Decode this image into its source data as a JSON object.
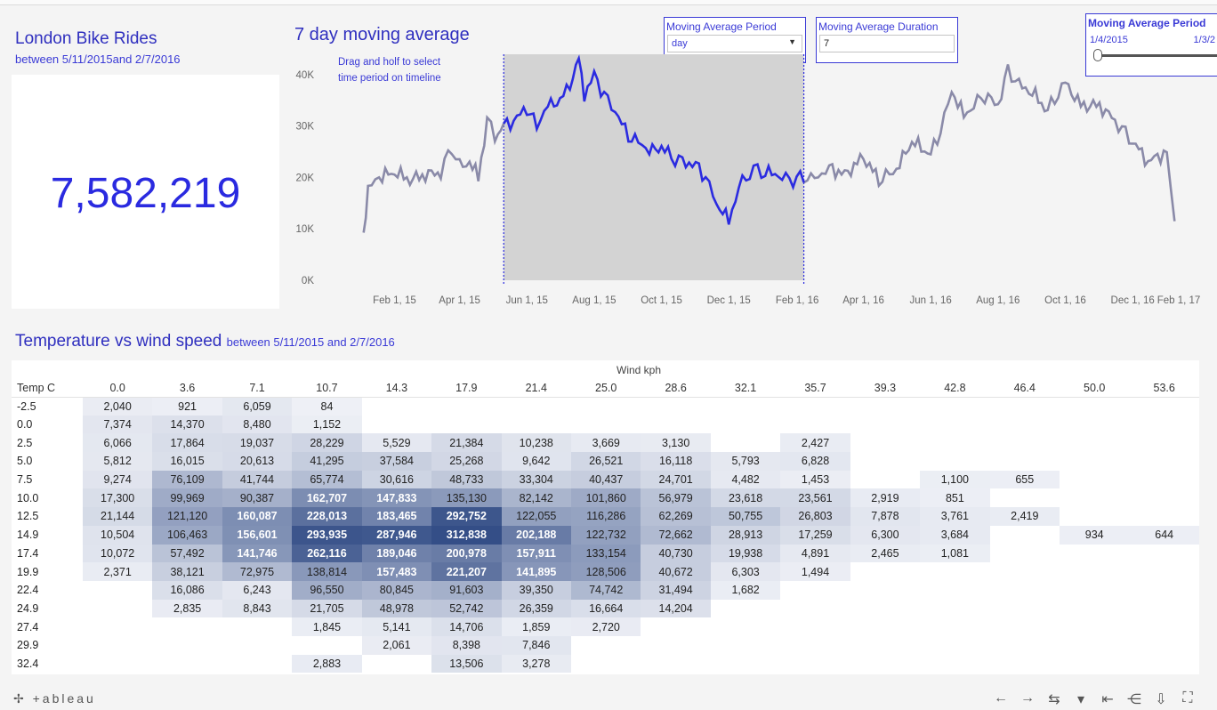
{
  "dashboard": {
    "title": "London Bike Rides",
    "subtitle": "between 5/11/2015and 2/7/2016",
    "kpi_value": "7,582,219"
  },
  "line_chart": {
    "title": "7 day moving average",
    "hint_line1": "Drag and holf to select",
    "hint_line2": "time period on timeline"
  },
  "controls": {
    "period": {
      "label": "Moving Average Period",
      "value": "day"
    },
    "duration": {
      "label": "Moving Average Duration",
      "value": "7"
    },
    "period_range": {
      "label": "Moving Average Period",
      "start": "1/4/2015",
      "end": "1/3/2"
    }
  },
  "heatmap": {
    "title": "Temperature vs wind speed",
    "subtitle": "between 5/11/2015 and 2/7/2016",
    "col_title": "Wind kph",
    "row_title": "Temp C",
    "columns": [
      "0.0",
      "3.6",
      "7.1",
      "10.7",
      "14.3",
      "17.9",
      "21.4",
      "25.0",
      "28.6",
      "32.1",
      "35.7",
      "39.3",
      "42.8",
      "46.4",
      "50.0",
      "53.6"
    ],
    "rows": [
      {
        "temp": "-2.5",
        "cells": [
          "2,040",
          "921",
          "6,059",
          "84",
          "",
          "",
          "",
          "",
          "",
          "",
          "",
          "",
          "",
          "",
          "",
          ""
        ]
      },
      {
        "temp": "0.0",
        "cells": [
          "7,374",
          "14,370",
          "8,480",
          "1,152",
          "",
          "",
          "",
          "",
          "",
          "",
          "",
          "",
          "",
          "",
          "",
          ""
        ]
      },
      {
        "temp": "2.5",
        "cells": [
          "6,066",
          "17,864",
          "19,037",
          "28,229",
          "5,529",
          "21,384",
          "10,238",
          "3,669",
          "3,130",
          "",
          "2,427",
          "",
          "",
          "",
          "",
          ""
        ]
      },
      {
        "temp": "5.0",
        "cells": [
          "5,812",
          "16,015",
          "20,613",
          "41,295",
          "37,584",
          "25,268",
          "9,642",
          "26,521",
          "16,118",
          "5,793",
          "6,828",
          "",
          "",
          "",
          "",
          ""
        ]
      },
      {
        "temp": "7.5",
        "cells": [
          "9,274",
          "76,109",
          "41,744",
          "65,774",
          "30,616",
          "48,733",
          "33,304",
          "40,437",
          "24,701",
          "4,482",
          "1,453",
          "",
          "1,100",
          "655",
          "",
          ""
        ]
      },
      {
        "temp": "10.0",
        "cells": [
          "17,300",
          "99,969",
          "90,387",
          "162,707",
          "147,833",
          "135,130",
          "82,142",
          "101,860",
          "56,979",
          "23,618",
          "23,561",
          "2,919",
          "851",
          "",
          "",
          ""
        ]
      },
      {
        "temp": "12.5",
        "cells": [
          "21,144",
          "121,120",
          "160,087",
          "228,013",
          "183,465",
          "292,752",
          "122,055",
          "116,286",
          "62,269",
          "50,755",
          "26,803",
          "7,878",
          "3,761",
          "2,419",
          "",
          ""
        ]
      },
      {
        "temp": "14.9",
        "cells": [
          "10,504",
          "106,463",
          "156,601",
          "293,935",
          "287,946",
          "312,838",
          "202,188",
          "122,732",
          "72,662",
          "28,913",
          "17,259",
          "6,300",
          "3,684",
          "",
          "934",
          "644"
        ]
      },
      {
        "temp": "17.4",
        "cells": [
          "10,072",
          "57,492",
          "141,746",
          "262,116",
          "189,046",
          "200,978",
          "157,911",
          "133,154",
          "40,730",
          "19,938",
          "4,891",
          "2,465",
          "1,081",
          "",
          "",
          ""
        ]
      },
      {
        "temp": "19.9",
        "cells": [
          "2,371",
          "38,121",
          "72,975",
          "138,814",
          "157,483",
          "221,207",
          "141,895",
          "128,506",
          "40,672",
          "6,303",
          "1,494",
          "",
          "",
          "",
          "",
          ""
        ]
      },
      {
        "temp": "22.4",
        "cells": [
          "",
          "16,086",
          "6,243",
          "96,550",
          "80,845",
          "91,603",
          "39,350",
          "74,742",
          "31,494",
          "1,682",
          "",
          "",
          "",
          "",
          "",
          ""
        ]
      },
      {
        "temp": "24.9",
        "cells": [
          "",
          "2,835",
          "8,843",
          "21,705",
          "48,978",
          "52,742",
          "26,359",
          "16,664",
          "14,204",
          "",
          "",
          "",
          "",
          "",
          "",
          ""
        ]
      },
      {
        "temp": "27.4",
        "cells": [
          "",
          "",
          "",
          "1,845",
          "5,141",
          "14,706",
          "1,859",
          "2,720",
          "",
          "",
          "",
          "",
          "",
          "",
          "",
          ""
        ]
      },
      {
        "temp": "29.9",
        "cells": [
          "",
          "",
          "",
          "",
          "2,061",
          "8,398",
          "7,846",
          "",
          "",
          "",
          "",
          "",
          "",
          "",
          "",
          ""
        ]
      },
      {
        "temp": "32.4",
        "cells": [
          "",
          "",
          "",
          "2,883",
          "",
          "13,506",
          "3,278",
          "",
          "",
          "",
          "",
          "",
          "",
          "",
          "",
          ""
        ]
      }
    ]
  },
  "footer": {
    "logo": "+ableau"
  },
  "chart_data": [
    {
      "type": "line",
      "title": "7 day moving average",
      "ylabel": "",
      "xlabel": "",
      "ylim": [
        0,
        45000
      ],
      "yticks": [
        "0K",
        "10K",
        "20K",
        "30K",
        "40K"
      ],
      "xticks": [
        "Feb 1, 15",
        "Apr 1, 15",
        "Jun 1, 15",
        "Aug 1, 15",
        "Oct 1, 15",
        "Dec 1, 15",
        "Feb 1, 16",
        "Apr 1, 16",
        "Jun 1, 16",
        "Aug 1, 16",
        "Oct 1, 16",
        "Dec 1, 16",
        "Feb 1, 17"
      ],
      "selection": {
        "start": "2015-05-11",
        "end": "2016-02-07",
        "highlight_color": "#2b2be0",
        "base_color": "#8a8aa8"
      },
      "x": [
        "2015-01-04",
        "2015-01-08",
        "2015-01-18",
        "2015-02-01",
        "2015-02-15",
        "2015-03-01",
        "2015-03-15",
        "2015-03-25",
        "2015-04-01",
        "2015-04-10",
        "2015-04-18",
        "2015-04-26",
        "2015-05-03",
        "2015-05-11",
        "2015-05-20",
        "2015-06-01",
        "2015-06-10",
        "2015-06-20",
        "2015-07-01",
        "2015-07-10",
        "2015-07-18",
        "2015-07-23",
        "2015-08-01",
        "2015-08-10",
        "2015-08-20",
        "2015-09-01",
        "2015-09-10",
        "2015-09-20",
        "2015-10-01",
        "2015-10-10",
        "2015-10-20",
        "2015-11-01",
        "2015-11-10",
        "2015-11-20",
        "2015-12-01",
        "2015-12-10",
        "2015-12-20",
        "2015-12-27",
        "2016-01-03",
        "2016-01-15",
        "2016-01-25",
        "2016-02-07",
        "2016-02-20",
        "2016-03-01",
        "2016-03-15",
        "2016-04-01",
        "2016-04-15",
        "2016-05-01",
        "2016-05-15",
        "2016-06-01",
        "2016-06-10",
        "2016-06-20",
        "2016-07-01",
        "2016-07-10",
        "2016-07-20",
        "2016-08-01",
        "2016-08-10",
        "2016-08-20",
        "2016-09-01",
        "2016-09-15",
        "2016-10-01",
        "2016-10-15",
        "2016-11-01",
        "2016-11-15",
        "2016-12-01",
        "2016-12-15",
        "2017-01-01",
        "2017-01-08"
      ],
      "y": [
        9000,
        18000,
        20000,
        21000,
        19500,
        20500,
        21000,
        26000,
        22000,
        23000,
        20000,
        31000,
        28000,
        30000,
        31000,
        33500,
        30000,
        34000,
        35000,
        38000,
        43000,
        36000,
        40000,
        36000,
        33000,
        28000,
        27000,
        25000,
        26000,
        24000,
        23000,
        22500,
        20000,
        15000,
        11500,
        18000,
        21000,
        21500,
        21000,
        20500,
        19500,
        20000,
        20000,
        22000,
        20500,
        24000,
        19500,
        21500,
        27000,
        24500,
        29000,
        37000,
        32000,
        34000,
        36000,
        34000,
        41000,
        38000,
        36500,
        33000,
        38500,
        34000,
        34000,
        31000,
        27000,
        23000,
        25000,
        11500
      ]
    },
    {
      "type": "heatmap",
      "title": "Temperature vs wind speed",
      "xlabel": "Wind kph",
      "ylabel": "Temp C",
      "note": "values in heatmap.rows"
    }
  ]
}
